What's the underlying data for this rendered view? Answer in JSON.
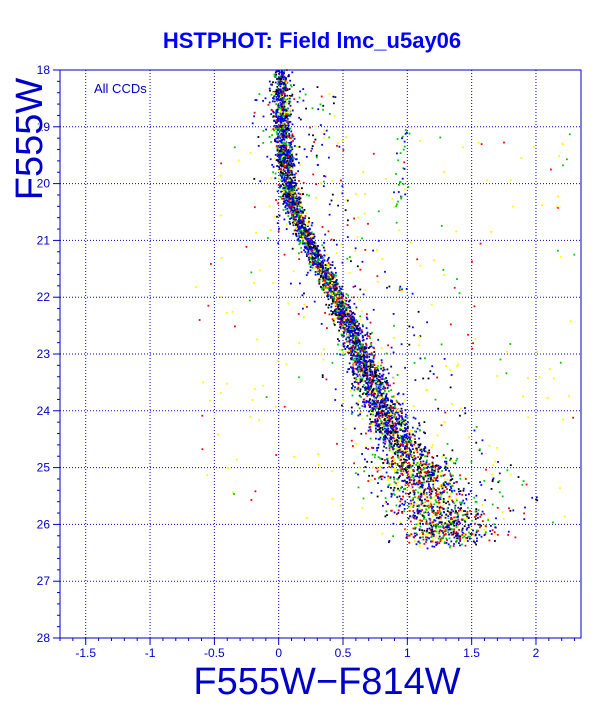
{
  "colors": {
    "axis": "#0000c8",
    "title": "#0000ff",
    "background": "#ffffff",
    "points": [
      "#000000",
      "#0000ff",
      "#ff0000",
      "#00c800",
      "#ffff00"
    ]
  },
  "chart_data": {
    "type": "scatter",
    "title": "HSTPHOT: Field lmc_u5ay06",
    "xlabel": "F555W−F814W",
    "ylabel": "F555W",
    "annotation": "All CCDs",
    "xlim": [
      -1.7,
      2.35
    ],
    "ylim": [
      28,
      18
    ],
    "y_inverted": true,
    "grid": true,
    "x_ticks": [
      -1.5,
      -1,
      -0.5,
      0,
      0.5,
      1,
      1.5,
      2
    ],
    "x_tick_labels": [
      "-1.5",
      "-1",
      "-0.5",
      "0",
      "0.5",
      "1",
      "1.5",
      "2"
    ],
    "y_ticks": [
      18,
      19,
      20,
      21,
      22,
      23,
      24,
      25,
      26,
      27,
      28
    ],
    "y_tick_labels": [
      "18",
      "19",
      "20",
      "21",
      "22",
      "23",
      "24",
      "25",
      "26",
      "27",
      "28"
    ],
    "sequence_ridge": [
      {
        "mag": 18.0,
        "color": 0.02
      },
      {
        "mag": 19.0,
        "color": 0.03
      },
      {
        "mag": 20.0,
        "color": 0.07
      },
      {
        "mag": 20.5,
        "color": 0.13
      },
      {
        "mag": 21.0,
        "color": 0.22
      },
      {
        "mag": 21.5,
        "color": 0.33
      },
      {
        "mag": 22.0,
        "color": 0.45
      },
      {
        "mag": 22.5,
        "color": 0.55
      },
      {
        "mag": 23.0,
        "color": 0.63
      },
      {
        "mag": 23.5,
        "color": 0.72
      },
      {
        "mag": 24.0,
        "color": 0.82
      },
      {
        "mag": 24.5,
        "color": 0.93
      },
      {
        "mag": 25.0,
        "color": 1.05
      },
      {
        "mag": 25.5,
        "color": 1.18
      },
      {
        "mag": 26.0,
        "color": 1.3
      }
    ]
  }
}
